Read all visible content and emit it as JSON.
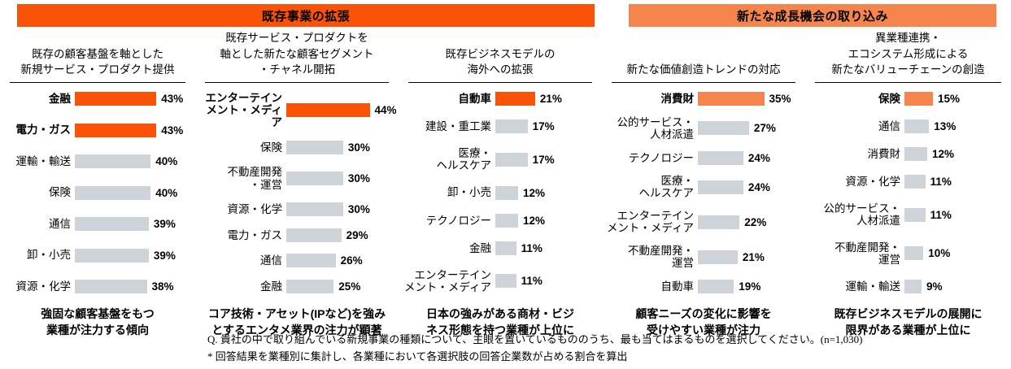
{
  "page": {
    "colors": {
      "strong_orange": "#fa5206",
      "light_orange": "#f5854d",
      "gray_bar": "#ced2d9",
      "text": "#000000"
    },
    "banners": [
      {
        "label": "既存事業の拡張",
        "color": "#fa5206"
      },
      {
        "label": "新たな成長機会の取り込み",
        "color": "#f5854d"
      }
    ],
    "footnote": {
      "question": "Q. 貴社の中で取り組んでいる新規事業の種類について、主眼を置いているもののうち、最も当てはまるものを選択してください。(n=1,030)",
      "note": "* 回答結果を業種別に集計し、各業種において各選択肢の回答企業数が占める割合を算出"
    }
  },
  "chart_data": [
    {
      "type": "bar",
      "orientation": "horizontal",
      "group": "既存事業の拡張",
      "title": "既存の顧客基盤を軸とした\n新規サービス・プロダクト提供",
      "unit": "%",
      "xlim": [
        0,
        50
      ],
      "highlight_color": "#fa5206",
      "bar_color": "#ced2d9",
      "categories": [
        "金融",
        "電力・ガス",
        "運輸・輸送",
        "保険",
        "通信",
        "卸・小売",
        "資源・化学"
      ],
      "values": [
        43,
        43,
        40,
        40,
        39,
        39,
        38
      ],
      "highlighted": [
        true,
        true,
        false,
        false,
        false,
        false,
        false
      ],
      "summary": "強固な顧客基盤をもつ\n業種が注力する傾向"
    },
    {
      "type": "bar",
      "orientation": "horizontal",
      "group": "既存事業の拡張",
      "title": "既存サービス・プロダクトを\n軸とした新たな顧客セグメント\n・チャネル開拓",
      "unit": "%",
      "xlim": [
        0,
        50
      ],
      "highlight_color": "#fa5206",
      "bar_color": "#ced2d9",
      "categories": [
        "エンターテイン\nメント・メディア",
        "保険",
        "不動産開発\n・運営",
        "資源・化学",
        "電力・ガス",
        "通信",
        "金融"
      ],
      "values": [
        44,
        30,
        30,
        30,
        29,
        26,
        25
      ],
      "highlighted": [
        true,
        false,
        false,
        false,
        false,
        false,
        false
      ],
      "summary": "コア技術・アセット(IPなど)を強み\nとするエンタメ業界の注力が顕著"
    },
    {
      "type": "bar",
      "orientation": "horizontal",
      "group": "既存事業の拡張",
      "title": "既存ビジネスモデルの\n海外への拡張",
      "unit": "%",
      "xlim": [
        0,
        50
      ],
      "highlight_color": "#fa5206",
      "bar_color": "#ced2d9",
      "categories": [
        "自動車",
        "建設・重工業",
        "医療・\nヘルスケア",
        "卸・小売",
        "テクノロジー",
        "金融",
        "エンターテイン\nメント・メディア"
      ],
      "values": [
        21,
        17,
        17,
        12,
        12,
        11,
        11
      ],
      "highlighted": [
        true,
        false,
        false,
        false,
        false,
        false,
        false
      ],
      "summary": "日本の強みがある商材・ビジ\nネス形態を持つ業種が上位に"
    },
    {
      "type": "bar",
      "orientation": "horizontal",
      "group": "新たな成長機会の取り込み",
      "title": "新たな価値創造トレンドの対応",
      "unit": "%",
      "xlim": [
        0,
        50
      ],
      "highlight_color": "#f5854d",
      "bar_color": "#ced2d9",
      "categories": [
        "消費財",
        "公的サービス・\n人材派遣",
        "テクノロジー",
        "医療・\nヘルスケア",
        "エンターテイン\nメント・メディア",
        "不動産開発・\n運営",
        "自動車"
      ],
      "values": [
        35,
        27,
        24,
        24,
        22,
        21,
        19
      ],
      "highlighted": [
        true,
        false,
        false,
        false,
        false,
        false,
        false
      ],
      "summary": "顧客ニーズの変化に影響を\n受けやすい業種が注力"
    },
    {
      "type": "bar",
      "orientation": "horizontal",
      "group": "新たな成長機会の取り込み",
      "title": "異業種連携・\nエコシステム形成による\n新たなバリューチェーンの創造",
      "unit": "%",
      "xlim": [
        0,
        50
      ],
      "highlight_color": "#f5854d",
      "bar_color": "#ced2d9",
      "categories": [
        "保険",
        "通信",
        "消費財",
        "資源・化学",
        "公的サービス・\n人材派遣",
        "不動産開発・\n運営",
        "運輸・輸送"
      ],
      "values": [
        15,
        13,
        12,
        11,
        11,
        10,
        9
      ],
      "highlighted": [
        true,
        false,
        false,
        false,
        false,
        false,
        false
      ],
      "summary": "既存ビジネスモデルの展開に\n限界がある業種が上位に"
    }
  ]
}
